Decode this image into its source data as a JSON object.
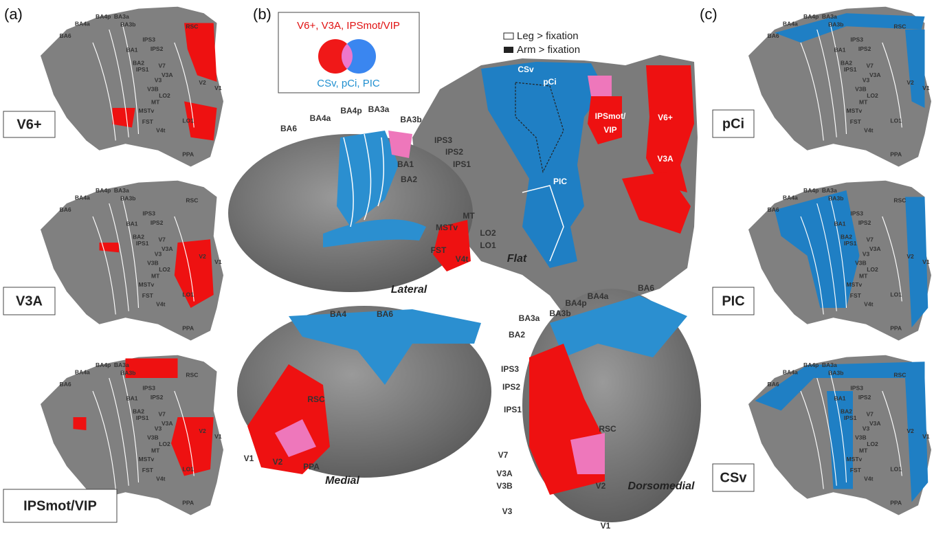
{
  "panels": [
    {
      "letter": "(a)",
      "maps": [
        {
          "name": "V6+"
        },
        {
          "name": "V3A"
        },
        {
          "name": "IPSmot/VIP"
        }
      ]
    },
    {
      "letter": "(b)",
      "legend": {
        "top": "V6+, V3A, IPSmot/VIP",
        "bottom": "CSv, pCi, PIC",
        "leg": "Leg > fixation",
        "arm": "Arm > fixation"
      },
      "views": [
        {
          "name": "Lateral",
          "labels": [
            "BA6",
            "BA4a",
            "BA4p",
            "BA3a",
            "BA3b",
            "IPS3",
            "IPS2",
            "IPS1",
            "BA1",
            "BA2",
            "MT",
            "MSTv",
            "LO2",
            "LO1",
            "FST",
            "V4t"
          ]
        },
        {
          "name": "Flat",
          "labels": [
            "CSv",
            "pCi",
            "IPSmot/",
            "VIP",
            "V6+",
            "V3A",
            "PIC"
          ]
        },
        {
          "name": "Medial",
          "labels": [
            "BA4",
            "BA6",
            "RSC",
            "V1",
            "V2",
            "PPA"
          ]
        },
        {
          "name": "Dorsomedial",
          "labels": [
            "BA6",
            "BA4a",
            "BA4p",
            "BA3a",
            "BA3b",
            "BA2",
            "IPS3",
            "IPS2",
            "IPS1",
            "RSC",
            "V7",
            "V3A",
            "V3B",
            "V3",
            "V2",
            "V1"
          ]
        }
      ]
    },
    {
      "letter": "(c)",
      "maps": [
        {
          "name": "pCi"
        },
        {
          "name": "PIC"
        },
        {
          "name": "CSv"
        }
      ]
    }
  ],
  "small_map_labels": [
    "BA6",
    "BA4a",
    "BA4p",
    "BA3a",
    "BA3b",
    "RSC",
    "IPS3",
    "IPS2",
    "BA1",
    "BA2",
    "IPS1",
    "V7",
    "V3A",
    "V3",
    "V3B",
    "LO2",
    "MT",
    "MSTv",
    "LO1",
    "FST",
    "V4t",
    "V2",
    "V1",
    "PPA"
  ]
}
